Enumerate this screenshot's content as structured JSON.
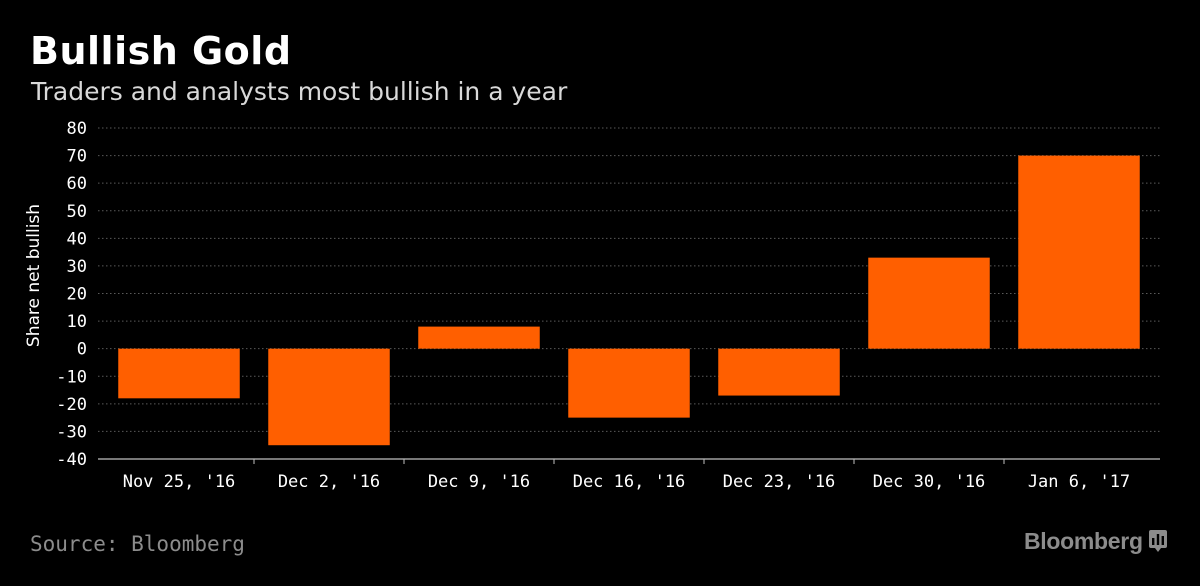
{
  "header": {
    "title": "Bullish Gold",
    "subtitle": "Traders and analysts most bullish in a year"
  },
  "footer": {
    "source": "Source: Bloomberg",
    "brand": "Bloomberg",
    "brand_icon": "bloomberg-terminal-icon"
  },
  "colors": {
    "background": "#000000",
    "bar": "#ff5f00",
    "grid": "#5a5a5a",
    "muted_text": "#8c8c8c"
  },
  "chart_data": {
    "type": "bar",
    "categories": [
      "Nov 25, '16",
      "Dec 2, '16",
      "Dec 9, '16",
      "Dec 16, '16",
      "Dec 23, '16",
      "Dec 30, '16",
      "Jan 6, '17"
    ],
    "values": [
      -18,
      -35,
      8,
      -25,
      -17,
      33,
      70
    ],
    "xlabel": "",
    "ylabel": "Share net bullish",
    "ylim": [
      -40,
      80
    ],
    "yticks": [
      80,
      70,
      60,
      50,
      40,
      30,
      20,
      10,
      0,
      -10,
      -20,
      -30,
      -40
    ],
    "grid": true,
    "legend": "none"
  }
}
